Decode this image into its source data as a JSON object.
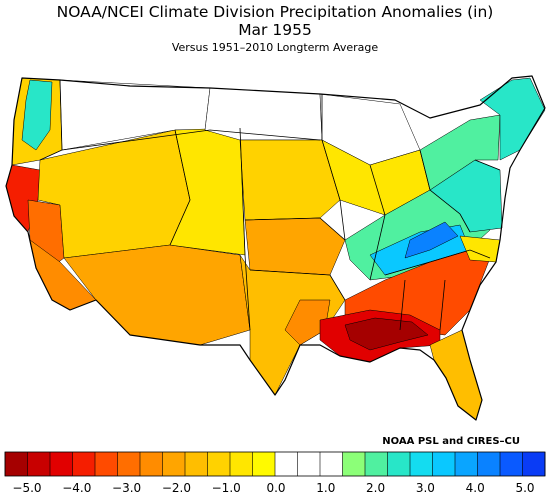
{
  "title": "NOAA/NCEI Climate Division Precipitation Anomalies (in)",
  "period": "Mar 1955",
  "subtitle": "Versus 1951–2010 Longterm Average",
  "credit": "NOAA PSL and CIRES–CU",
  "colorbar": {
    "colors": [
      "#a50000",
      "#c80000",
      "#e10000",
      "#f51e00",
      "#ff4b00",
      "#ff6e00",
      "#ff8c00",
      "#ffa500",
      "#ffbe00",
      "#ffd200",
      "#ffe600",
      "#fffa00",
      "#ffffff",
      "#ffffff",
      "#ffffff",
      "#8cff78",
      "#50f0a0",
      "#28e6c8",
      "#14dcf0",
      "#0ac8ff",
      "#0aa5ff",
      "#0a82ff",
      "#0a5aff",
      "#0a3cf5"
    ],
    "tick_labels": [
      "−5.0",
      "−4.0",
      "−3.0",
      "−2.0",
      "−1.0",
      "0.0",
      "1.0",
      "2.0",
      "3.0",
      "4.0",
      "5.0"
    ],
    "range": [
      -5.0,
      5.0
    ]
  },
  "regions": [
    {
      "name": "pacific-northwest-coast",
      "color": "#ffd200"
    },
    {
      "name": "northern-california-coast",
      "color": "#f51e00"
    },
    {
      "name": "california-central",
      "color": "#ff6e00"
    },
    {
      "name": "southern-california",
      "color": "#ff8c00"
    },
    {
      "name": "great-basin",
      "color": "#ffd200"
    },
    {
      "name": "desert-southwest",
      "color": "#ffa500"
    },
    {
      "name": "northern-rockies",
      "color": "#ffffff"
    },
    {
      "name": "central-rockies",
      "color": "#ffe600"
    },
    {
      "name": "northern-plains",
      "color": "#ffffff"
    },
    {
      "name": "central-plains",
      "color": "#ffd200"
    },
    {
      "name": "kansas-oklahoma",
      "color": "#ffa500"
    },
    {
      "name": "texas",
      "color": "#ffbe00"
    },
    {
      "name": "texas-south",
      "color": "#ff8c00"
    },
    {
      "name": "upper-midwest",
      "color": "#ffffff"
    },
    {
      "name": "midwest",
      "color": "#ffe600"
    },
    {
      "name": "ohio-valley",
      "color": "#50f0a0"
    },
    {
      "name": "tennessee-valley",
      "color": "#0ac8ff"
    },
    {
      "name": "kentucky-core",
      "color": "#0a82ff"
    },
    {
      "name": "gulf-coast",
      "color": "#e10000"
    },
    {
      "name": "gulf-core",
      "color": "#a50000"
    },
    {
      "name": "southeast",
      "color": "#ff4b00"
    },
    {
      "name": "florida",
      "color": "#ffbe00"
    },
    {
      "name": "carolinas",
      "color": "#ffe600"
    },
    {
      "name": "mid-atlantic",
      "color": "#28e6c8"
    },
    {
      "name": "northeast",
      "color": "#50f0a0"
    },
    {
      "name": "new-england",
      "color": "#28e6c8"
    },
    {
      "name": "washington-cascades",
      "color": "#28e6c8"
    }
  ]
}
